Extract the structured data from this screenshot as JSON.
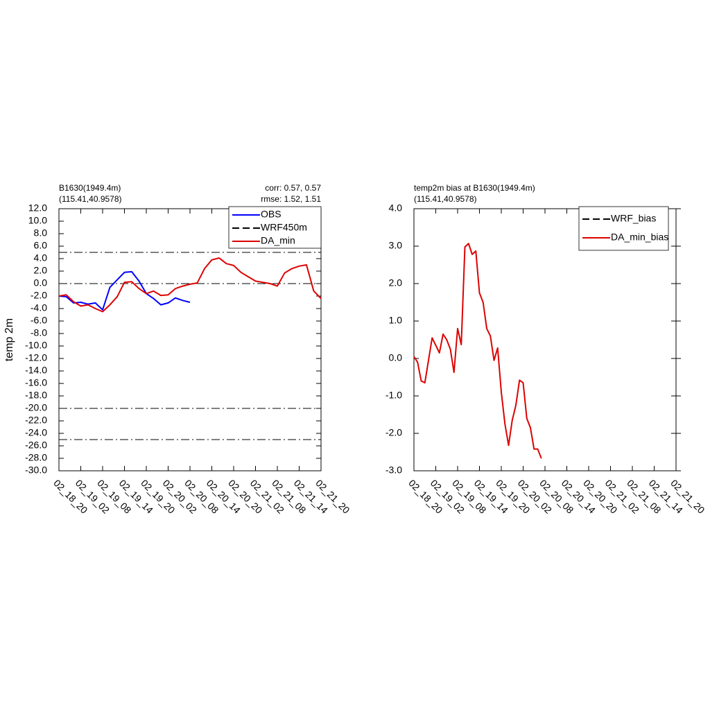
{
  "chart_data": [
    {
      "type": "line",
      "title": "B1630(1949.4m)",
      "subtitle": "(115.41,40.9578)",
      "annotations": [
        "corr:  0.57, 0.57",
        "rmse: 1.52, 1.51"
      ],
      "ylabel": "temp 2m",
      "x": [
        0,
        2,
        4,
        6,
        8,
        10,
        12,
        14,
        16,
        18,
        20,
        22,
        24,
        26,
        28,
        30,
        32,
        34,
        36,
        38,
        40,
        42,
        44,
        46,
        48,
        50,
        52,
        54,
        56,
        58,
        60,
        62,
        64,
        66,
        68,
        70,
        72
      ],
      "xlim": [
        0,
        72
      ],
      "xticks": [
        {
          "value": 0,
          "label": "02_18_20"
        },
        {
          "value": 6,
          "label": "02_19_02"
        },
        {
          "value": 12,
          "label": "02_19_08"
        },
        {
          "value": 18,
          "label": "02_19_14"
        },
        {
          "value": 24,
          "label": "02_19_20"
        },
        {
          "value": 30,
          "label": "02_20_02"
        },
        {
          "value": 36,
          "label": "02_20_08"
        },
        {
          "value": 42,
          "label": "02_20_14"
        },
        {
          "value": 48,
          "label": "02_20_20"
        },
        {
          "value": 54,
          "label": "02_21_02"
        },
        {
          "value": 60,
          "label": "02_21_08"
        },
        {
          "value": 66,
          "label": "02_21_14"
        },
        {
          "value": 72,
          "label": "02_21_20"
        }
      ],
      "ylim": [
        -30,
        12
      ],
      "yticks": [
        {
          "value": 12,
          "label": "12.0"
        },
        {
          "value": 10,
          "label": "10.0"
        },
        {
          "value": 8,
          "label": "8.0"
        },
        {
          "value": 6,
          "label": "6.0"
        },
        {
          "value": 4,
          "label": "4.0"
        },
        {
          "value": 2,
          "label": "2.0"
        },
        {
          "value": 0,
          "label": "0.0"
        },
        {
          "value": -2,
          "label": "-2.0"
        },
        {
          "value": -4,
          "label": "-4.0"
        },
        {
          "value": -6,
          "label": "-6.0"
        },
        {
          "value": -8,
          "label": "-8.0"
        },
        {
          "value": -10,
          "label": "-10.0"
        },
        {
          "value": -12,
          "label": "-12.0"
        },
        {
          "value": -14,
          "label": "-14.0"
        },
        {
          "value": -16,
          "label": "-16.0"
        },
        {
          "value": -18,
          "label": "-18.0"
        },
        {
          "value": -20,
          "label": "-20.0"
        },
        {
          "value": -22,
          "label": "-22.0"
        },
        {
          "value": -24,
          "label": "-24.0"
        },
        {
          "value": -26,
          "label": "-26.0"
        },
        {
          "value": -28,
          "label": "-28.0"
        },
        {
          "value": -30,
          "label": "-30.0"
        }
      ],
      "hlines": [
        5,
        0,
        -20,
        -25
      ],
      "legend": "upper right",
      "series": [
        {
          "name": "OBS",
          "color": "#0000ff",
          "dash": "solid",
          "values": [
            -2.0,
            -2.1,
            -3.1,
            -3.0,
            -3.3,
            -3.1,
            -4.2,
            -0.6,
            0.6,
            1.8,
            1.9,
            0.4,
            -1.6,
            -2.4,
            -3.4,
            -3.1,
            -2.3,
            -2.7,
            -3.0,
            null,
            null,
            null,
            null,
            null,
            null,
            null,
            null,
            null,
            null,
            null,
            null,
            null,
            null,
            null,
            null,
            null,
            null
          ]
        },
        {
          "name": "WRF450m",
          "color": "#000000",
          "dash": "dash",
          "values": [
            null,
            null,
            null,
            null,
            null,
            null,
            null,
            null,
            null,
            null,
            null,
            null,
            null,
            null,
            null,
            null,
            null,
            null,
            null,
            null,
            null,
            null,
            null,
            null,
            null,
            null,
            null,
            null,
            null,
            null,
            null,
            null,
            null,
            null,
            null,
            null,
            null
          ]
        },
        {
          "name": "DA_min",
          "color": "#dd0000",
          "dash": "solid",
          "values": [
            -2.0,
            -1.8,
            -2.9,
            -3.6,
            -3.4,
            -4.0,
            -4.5,
            -3.4,
            -2.1,
            0.2,
            0.3,
            -0.8,
            -1.6,
            -1.2,
            -1.9,
            -1.8,
            -0.8,
            -0.4,
            -0.1,
            0.1,
            2.4,
            3.8,
            4.1,
            3.2,
            2.9,
            1.8,
            1.1,
            0.4,
            0.2,
            0.0,
            -0.4,
            1.7,
            2.4,
            2.8,
            3.0,
            -1.2,
            -2.4
          ]
        }
      ]
    },
    {
      "type": "line",
      "title": "temp2m bias at B1630(1949.4m)",
      "subtitle": "(115.41,40.9578)",
      "x": [
        0,
        1,
        2,
        3,
        4,
        5,
        6,
        7,
        8,
        9,
        10,
        11,
        12,
        13,
        14,
        15,
        16,
        17,
        18,
        19,
        20,
        21,
        22,
        23,
        24,
        25,
        26,
        27,
        28,
        29,
        30,
        31,
        32,
        33,
        34,
        35
      ],
      "xlim": [
        0,
        72
      ],
      "xticks": [
        {
          "value": 0,
          "label": "02_18_20"
        },
        {
          "value": 6,
          "label": "02_19_02"
        },
        {
          "value": 12,
          "label": "02_19_08"
        },
        {
          "value": 18,
          "label": "02_19_14"
        },
        {
          "value": 24,
          "label": "02_19_20"
        },
        {
          "value": 30,
          "label": "02_20_02"
        },
        {
          "value": 36,
          "label": "02_20_08"
        },
        {
          "value": 42,
          "label": "02_20_14"
        },
        {
          "value": 48,
          "label": "02_20_20"
        },
        {
          "value": 54,
          "label": "02_21_02"
        },
        {
          "value": 60,
          "label": "02_21_08"
        },
        {
          "value": 66,
          "label": "02_21_14"
        },
        {
          "value": 72,
          "label": "02_21_20"
        }
      ],
      "ylim": [
        -3,
        4
      ],
      "yticks": [
        {
          "value": 4,
          "label": "4.0"
        },
        {
          "value": 3,
          "label": "3.0"
        },
        {
          "value": 2,
          "label": "2.0"
        },
        {
          "value": 1,
          "label": "1.0"
        },
        {
          "value": 0,
          "label": "0.0"
        },
        {
          "value": -1,
          "label": "-1.0"
        },
        {
          "value": -2,
          "label": "-2.0"
        },
        {
          "value": -3,
          "label": "-3.0"
        }
      ],
      "legend": "upper right",
      "series": [
        {
          "name": "WRF_bias",
          "color": "#000000",
          "dash": "dash",
          "values": [
            null,
            null,
            null,
            null,
            null,
            null,
            null,
            null,
            null,
            null,
            null,
            null,
            null,
            null,
            null,
            null,
            null,
            null,
            null,
            null,
            null,
            null,
            null,
            null,
            null,
            null,
            null,
            null,
            null,
            null,
            null,
            null,
            null,
            null,
            null,
            null
          ]
        },
        {
          "name": "DA_min_bias",
          "color": "#dd0000",
          "dash": "solid",
          "values": [
            0.05,
            -0.1,
            -0.6,
            -0.65,
            -0.05,
            0.55,
            0.35,
            0.15,
            0.65,
            0.5,
            0.25,
            -0.37,
            0.8,
            0.37,
            2.98,
            3.07,
            2.78,
            2.87,
            1.75,
            1.5,
            0.8,
            0.6,
            -0.05,
            0.28,
            -0.9,
            -1.75,
            -2.32,
            -1.65,
            -1.25,
            -0.58,
            -0.65,
            -1.6,
            -1.85,
            -2.42,
            -2.42,
            -2.67
          ]
        }
      ]
    }
  ]
}
